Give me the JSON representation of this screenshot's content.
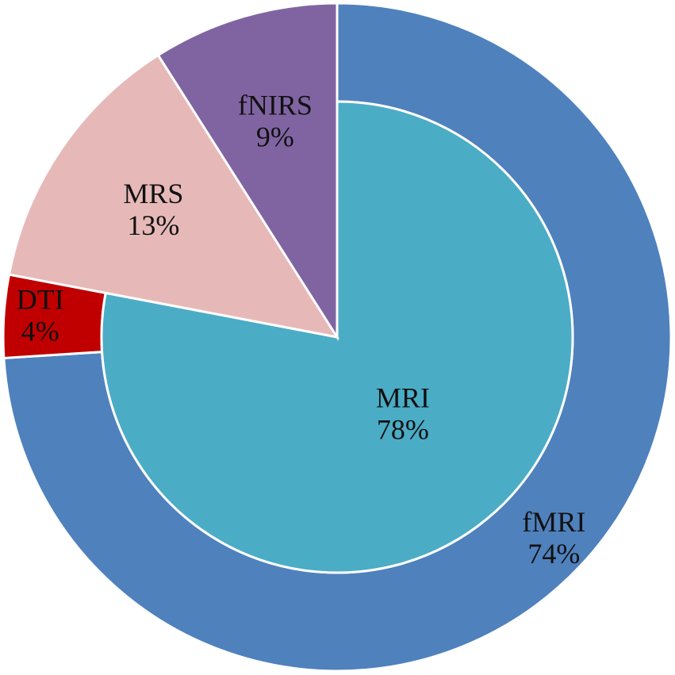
{
  "chart_data": {
    "type": "nested-pie",
    "outer": {
      "categories": [
        "fMRI",
        "DTI"
      ],
      "values": [
        74,
        4
      ],
      "value_labels": [
        "74%",
        "4%"
      ],
      "colors": [
        "#4f81bd",
        "#c00000"
      ]
    },
    "inner": {
      "categories": [
        "MRI"
      ],
      "values": [
        78
      ],
      "value_labels": [
        "78%"
      ],
      "colors": [
        "#4bacc6"
      ]
    },
    "shared": {
      "categories": [
        "MRS",
        "fNIRS"
      ],
      "values": [
        13,
        9
      ],
      "value_labels": [
        "13%",
        "9%"
      ],
      "colors": [
        "#e6b9b8",
        "#8064a2"
      ]
    }
  }
}
